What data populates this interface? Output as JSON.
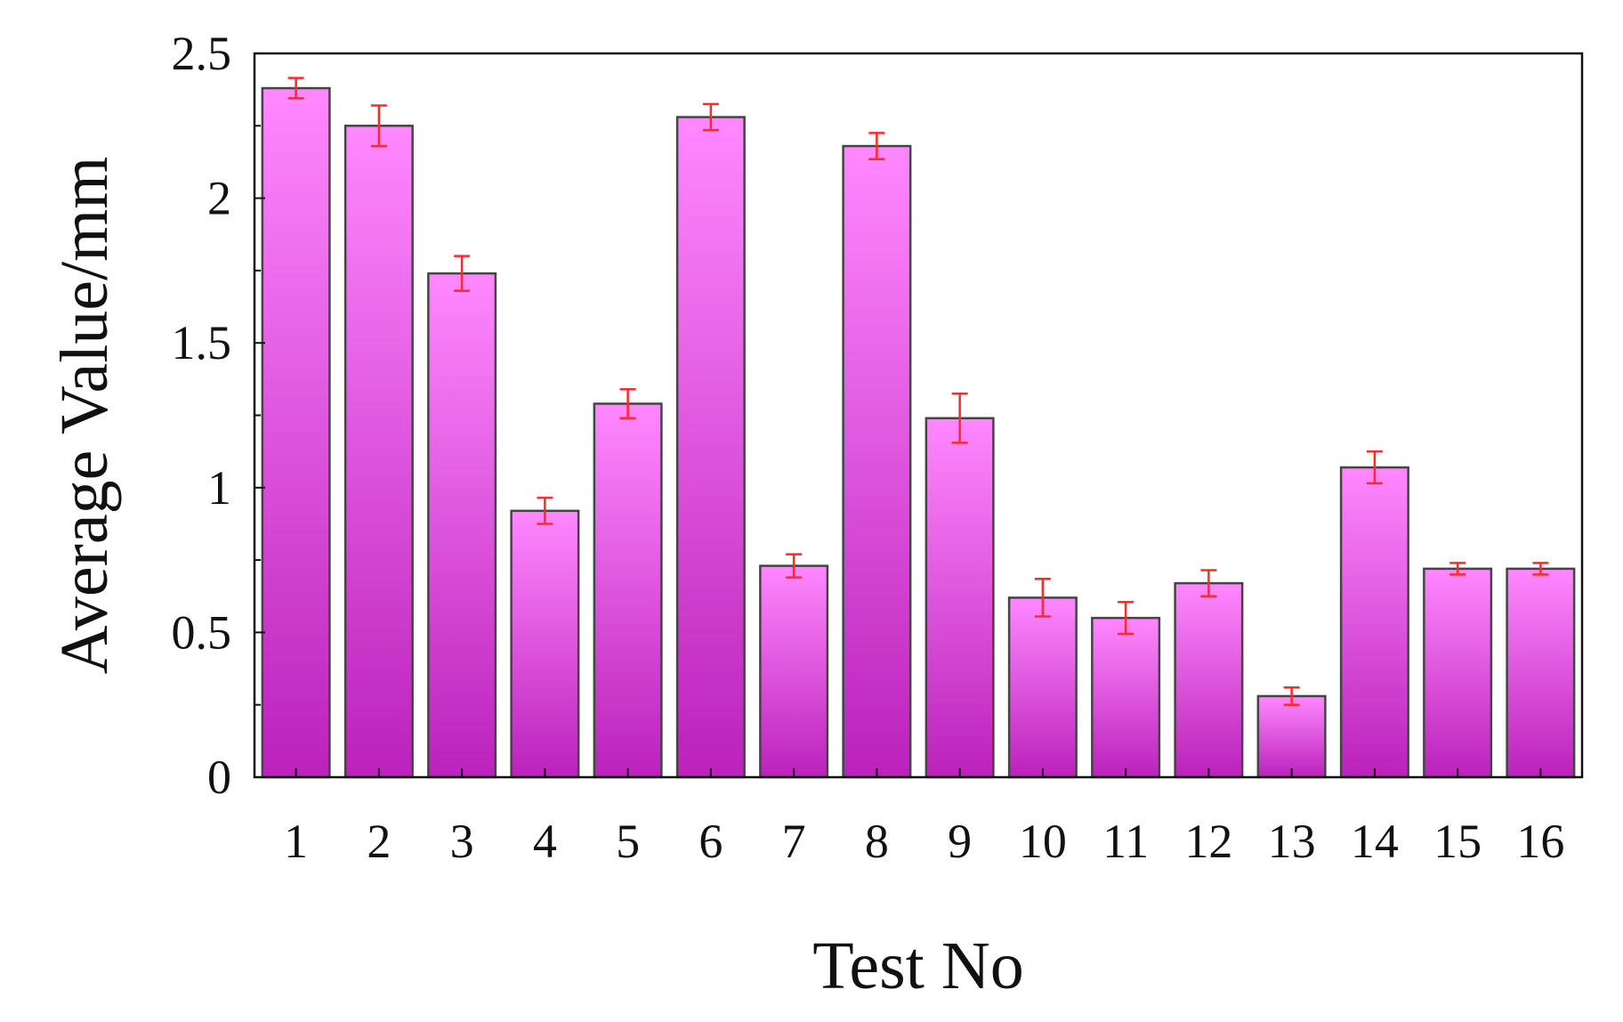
{
  "chart_data": {
    "type": "bar",
    "xlabel": "Test No",
    "ylabel": "Average Value/mm",
    "ylim": [
      0,
      2.5
    ],
    "yticks": [
      "0",
      "0.5",
      "1",
      "1.5",
      "2",
      "2.5"
    ],
    "categories": [
      "1",
      "2",
      "3",
      "4",
      "5",
      "6",
      "7",
      "8",
      "9",
      "10",
      "11",
      "12",
      "13",
      "14",
      "15",
      "16"
    ],
    "values": [
      2.38,
      2.25,
      1.74,
      0.92,
      1.29,
      2.28,
      0.73,
      2.18,
      1.24,
      0.62,
      0.55,
      0.67,
      0.28,
      1.07,
      0.72,
      0.72
    ],
    "errors": [
      0.035,
      0.07,
      0.06,
      0.045,
      0.05,
      0.045,
      0.04,
      0.045,
      0.085,
      0.065,
      0.055,
      0.045,
      0.03,
      0.055,
      0.02,
      0.02
    ],
    "grid": false,
    "colors": {
      "bar_top": "#ff88ff",
      "bar_bottom": "#bb22bb",
      "error_bar": "#ff2a2a"
    }
  }
}
